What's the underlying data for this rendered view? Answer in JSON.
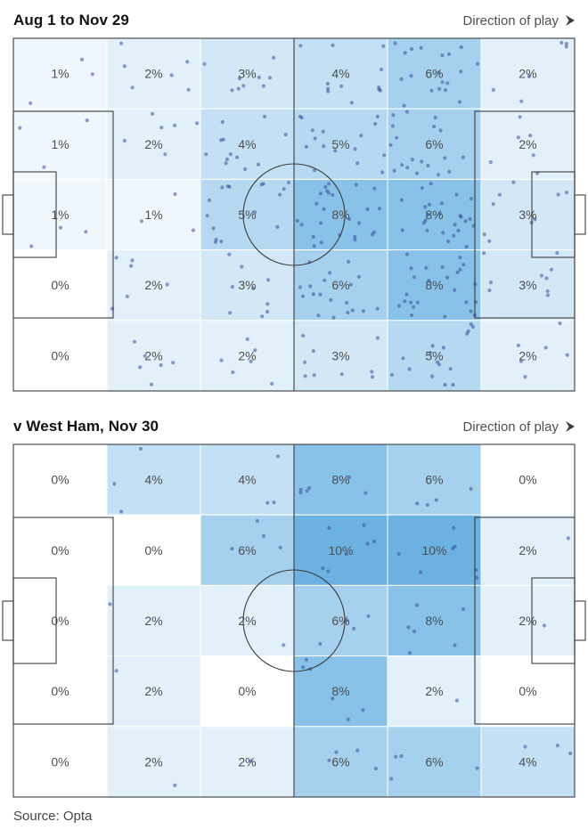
{
  "source_label": "Source: Opta",
  "style": {
    "heat_base_color": "#4da3dd",
    "heat_scale_max": 12,
    "dot_color": "#3b4f9a",
    "dot_opacity": 0.55,
    "line_color": "#3c3c3c",
    "label_color": "#4d4d4d",
    "title_color": "#121212",
    "direction_color": "#4f4f4f",
    "cell_border_color": "#ffffff"
  },
  "chart_data": [
    {
      "type": "heatmap",
      "title": "Aug 1 to Nov 29",
      "direction_label": "Direction of play",
      "grid": {
        "rows": 5,
        "cols": 6
      },
      "values_percent": [
        [
          1,
          2,
          3,
          4,
          6,
          2
        ],
        [
          1,
          2,
          4,
          5,
          6,
          2
        ],
        [
          1,
          1,
          5,
          8,
          8,
          3
        ],
        [
          0,
          2,
          3,
          6,
          8,
          3
        ],
        [
          0,
          2,
          2,
          3,
          5,
          2
        ]
      ],
      "overlay": "touch-dots",
      "dots_per_percent": 3.1,
      "seed": 20241129
    },
    {
      "type": "heatmap",
      "title": "v West Ham, Nov 30",
      "direction_label": "Direction of play",
      "grid": {
        "rows": 5,
        "cols": 6
      },
      "values_percent": [
        [
          0,
          4,
          4,
          8,
          6,
          0
        ],
        [
          0,
          0,
          6,
          10,
          10,
          2
        ],
        [
          0,
          2,
          2,
          6,
          8,
          2
        ],
        [
          0,
          2,
          0,
          8,
          2,
          0
        ],
        [
          0,
          2,
          2,
          6,
          6,
          4
        ]
      ],
      "overlay": "touch-dots",
      "dots_per_percent": 0.7,
      "seed": 20241130
    }
  ]
}
